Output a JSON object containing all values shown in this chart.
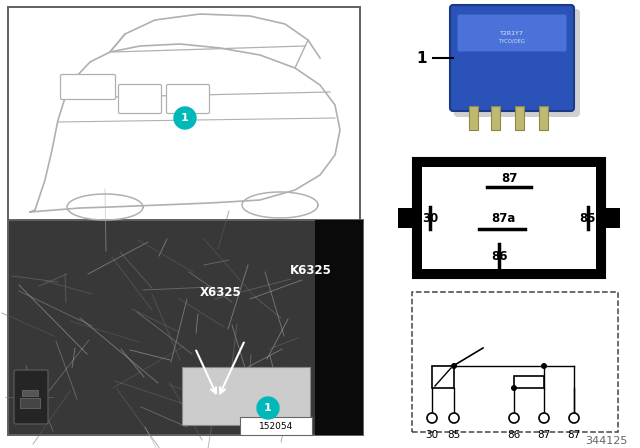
{
  "bg_color": "#ffffff",
  "diagram_number": "344125",
  "part_number": "152054",
  "cyan_badge_color": "#00b8b8",
  "relay_blue_body": "#2a52b8",
  "relay_blue_top": "#4a72d8",
  "relay_blue_dark": "#1a3a88",
  "relay_pin_color": "#c0b870",
  "relay_pin_edge": "#908848",
  "photo_bg": "#383838",
  "pillar_color": "#0a0a0a",
  "wire_colors": [
    "#787878",
    "#909090",
    "#a8a8a8",
    "#686868",
    "#b0b0b0",
    "#606060"
  ],
  "car_line_color": "#b0b0b0",
  "car_box_edge": "#606060",
  "terminal_bg": "#000000",
  "terminal_inner": "#ffffff",
  "schematic_edge": "#444444",
  "K6325_text": "K6325",
  "X6325_text": "X6325",
  "badge_text": "1",
  "relay_label": "1",
  "pin_labels_terminal": [
    "87",
    "87a",
    "85",
    "30",
    "86"
  ],
  "pin_labels_schematic": [
    "30",
    "85",
    "86",
    "87",
    "87"
  ]
}
